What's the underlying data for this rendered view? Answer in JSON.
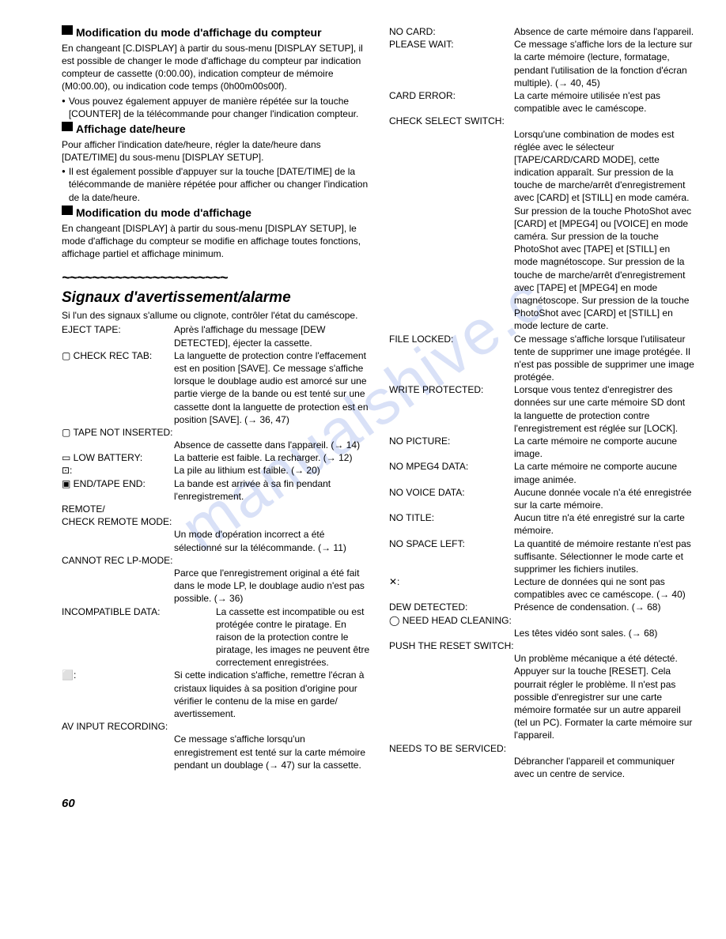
{
  "left": {
    "sec1_title": "Modification du mode d'affichage du compteur",
    "sec1_p1": "En changeant [C.DISPLAY] à partir du sous-menu [DISPLAY SETUP], il est possible de changer le mode d'affichage du compteur par indication compteur de cassette (0:00.00), indication compteur de mémoire (M0:00.00), ou indication code temps (0h00m00s00f).",
    "sec1_b1": "Vous pouvez également appuyer de manière répétée sur la touche [COUNTER] de la télécommande pour changer l'indication compteur.",
    "sec2_title": "Affichage date/heure",
    "sec2_p1": "Pour afficher l'indication date/heure, régler la date/heure dans [DATE/TIME] du sous-menu [DISPLAY SETUP].",
    "sec2_b1": "Il est également possible d'appuyer sur la touche [DATE/TIME] de la télécommande de manière répétée pour afficher ou changer l'indication de la date/heure.",
    "sec3_title": "Modification du mode d'affichage",
    "sec3_p1": "En changeant [DISPLAY] à partir du sous-menu [DISPLAY SETUP], le mode d'affichage du compteur se modifie en affichage toutes fonctions, affichage partiel et affichage minimum.",
    "wave": "~~~~~~~~~~~~~~~~~~~~~~",
    "major_title": "Signaux d'avertissement/alarme",
    "major_p1": "Si l'un des signaux s'allume ou clignote, contrôler l'état du caméscope.",
    "rows": [
      {
        "l": "EJECT TAPE:",
        "v": "Après l'affichage du message [DEW DETECTED], éjecter la cassette."
      },
      {
        "l": "▢ CHECK REC TAB:",
        "v": "La languette de protection contre l'effacement est en position [SAVE]. Ce message s'affiche lorsque le doublage audio est amorcé sur une partie vierge de la bande ou est tenté sur une cassette dont la languette de protection est en position [SAVE]. (→ 36, 47)"
      },
      {
        "l": "▢ TAPE NOT INSERTED:",
        "v": ""
      },
      {
        "l": "",
        "v": "Absence de cassette dans l'appareil. (→ 14)"
      },
      {
        "l": "▭ LOW BATTERY:",
        "v": "La batterie est faible. La recharger. (→ 12)"
      },
      {
        "l": "⊡:",
        "v": "La pile au lithium est faible. (→ 20)"
      },
      {
        "l": "▣ END/TAPE END:",
        "v": "La bande est arrivée à sa fin pendant l'enregistrement."
      },
      {
        "l": "REMOTE/",
        "v": ""
      },
      {
        "l": "CHECK REMOTE MODE:",
        "v": ""
      },
      {
        "l": "",
        "v": "Un mode d'opération incorrect a été sélectionné sur la télécommande. (→ 11)"
      },
      {
        "l": "CANNOT REC LP-MODE:",
        "v": ""
      },
      {
        "l": "",
        "v": "Parce que l'enregistrement original a été fait dans le mode LP, le doublage audio n'est pas possible. (→ 36)"
      },
      {
        "l": "INCOMPATIBLE DATA:",
        "v": "La cassette est incompatible ou est protégée contre le piratage. En raison de la protection contre le piratage, les images ne peuvent être correctement enregistrées.",
        "span": true
      },
      {
        "l": "⬜:",
        "v": "Si cette indication s'affiche, remettre l'écran à cristaux liquides à sa position d'origine pour vérifier le contenu de la mise en garde/ avertissement."
      },
      {
        "l": "AV INPUT RECORDING:",
        "v": ""
      },
      {
        "l": "",
        "v": "Ce message s'affiche lorsqu'un enregistrement est tenté sur la carte mémoire pendant un doublage (→ 47) sur la cassette."
      }
    ]
  },
  "right": {
    "rows": [
      {
        "l": "NO CARD:",
        "v": "Absence de carte mémoire dans l'appareil."
      },
      {
        "l": "PLEASE WAIT:",
        "v": "Ce message s'affiche lors de la lecture sur la carte mémoire (lecture, formatage, pendant l'utilisation de la fonction d'écran multiple). (→ 40, 45)"
      },
      {
        "l": "CARD ERROR:",
        "v": "La carte mémoire utilisée n'est pas compatible avec le caméscope."
      },
      {
        "l": "CHECK SELECT SWITCH:",
        "v": "",
        "span": true
      },
      {
        "l": "",
        "v": "Lorsqu'une combination de modes est réglée avec le sélecteur [TAPE/CARD/CARD MODE], cette indication apparaît. Sur pression de la touche de marche/arrêt d'enregistrement avec [CARD] et [STILL] en mode caméra. Sur pression de la touche PhotoShot avec [CARD] et [MPEG4] ou [VOICE] en mode caméra. Sur pression de la touche PhotoShot avec [TAPE] et [STILL] en mode magnétoscope. Sur pression de la touche de marche/arrêt d'enregistrement avec [TAPE] et [MPEG4] en mode magnétoscope. Sur pression de la touche PhotoShot avec [CARD] et [STILL] en mode lecture de carte."
      },
      {
        "l": "FILE LOCKED:",
        "v": "Ce message s'affiche lorsque l'utilisateur tente de supprimer une image protégée. Il n'est pas possible de supprimer une image protégée."
      },
      {
        "l": "WRITE PROTECTED:",
        "v": "Lorsque vous tentez d'enregistrer des données sur une carte mémoire SD dont la languette de protection contre l'enregistrement est réglée sur [LOCK]."
      },
      {
        "l": "NO PICTURE:",
        "v": "La carte mémoire ne comporte aucune image."
      },
      {
        "l": "NO MPEG4 DATA:",
        "v": "La carte mémoire ne comporte aucune image animée."
      },
      {
        "l": "NO VOICE DATA:",
        "v": "Aucune donnée vocale n'a été enregistrée sur la carte mémoire."
      },
      {
        "l": "NO TITLE:",
        "v": "Aucun titre n'a été enregistré sur la carte mémoire."
      },
      {
        "l": "NO SPACE LEFT:",
        "v": "La quantité de mémoire restante n'est pas suffisante. Sélectionner le mode carte et supprimer les fichiers inutiles."
      },
      {
        "l": "✕:",
        "v": "Lecture de données qui ne sont pas compatibles avec ce caméscope. (→ 40)"
      },
      {
        "l": "DEW DETECTED:",
        "v": "Présence de condensation. (→ 68)"
      },
      {
        "l": "◯ NEED HEAD CLEANING:",
        "v": "",
        "span": true
      },
      {
        "l": "",
        "v": "Les têtes vidéo sont sales. (→ 68)"
      },
      {
        "l": "PUSH THE RESET SWITCH:",
        "v": "",
        "span": true
      },
      {
        "l": "",
        "v": "Un problème mécanique a été détecté. Appuyer sur la touche [RESET]. Cela pourrait régler le problème. Il n'est pas possible d'enregistrer sur une carte mémoire formatée sur un autre appareil (tel un PC). Formater la carte mémoire sur l'appareil."
      },
      {
        "l": "NEEDS TO BE SERVICED:",
        "v": "",
        "span": true
      },
      {
        "l": "",
        "v": "Débrancher l'appareil et communiquer avec un centre de service."
      }
    ]
  },
  "page": "60"
}
